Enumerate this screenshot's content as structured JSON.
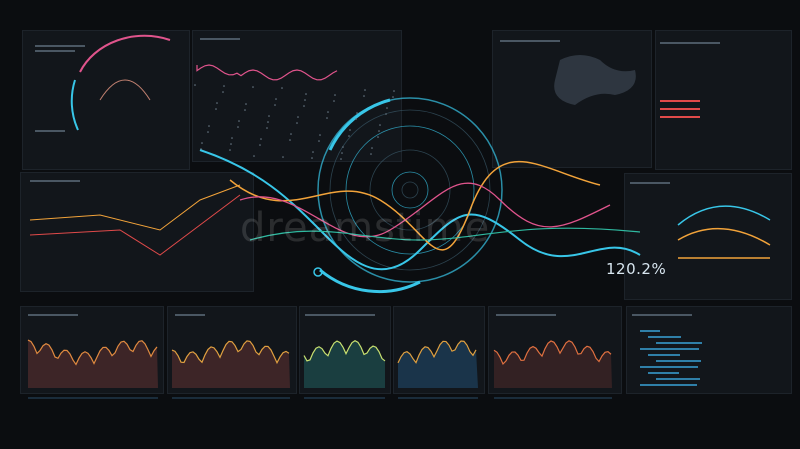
{
  "hud": {
    "readout": "120.2%"
  },
  "watermark": "dreamstime",
  "colors": {
    "background": "#0b0d10",
    "cyan": "#38c6e8",
    "orange": "#f2a33a",
    "pink": "#e0548c",
    "red": "#e04a4a",
    "teal": "#2fb9a0"
  }
}
